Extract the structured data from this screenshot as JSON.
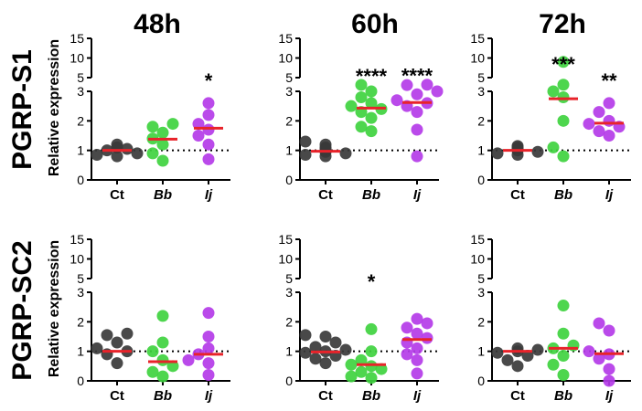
{
  "figure": {
    "time_points": [
      "48h",
      "60h",
      "72h"
    ],
    "genes": [
      "PGRP-S1",
      "PGRP-SC2"
    ],
    "ylabel": "Relative expression",
    "colors": {
      "Ct": "#3a3a3a",
      "Bb": "#3fd23f",
      "Ij": "#b43be8",
      "median": "#e8232a",
      "axis": "#000000"
    }
  },
  "chart_data": [
    {
      "type": "scatter",
      "panel": "PGRP-S1 48h",
      "gene": "PGRP-S1",
      "time": "48h",
      "categories": [
        "Ct",
        "Bb",
        "Ij"
      ],
      "ylabel": "Relative expression",
      "ylim_lower": [
        0,
        3
      ],
      "ylim_upper": [
        5,
        15
      ],
      "yticks_lower": [
        "0",
        "1",
        "2",
        "3"
      ],
      "yticks_upper": [
        "5",
        "10",
        "15"
      ],
      "reference_line": 1,
      "series": [
        {
          "name": "Ct",
          "values": [
            0.8,
            0.85,
            0.9,
            1.0,
            1.05,
            1.1,
            1.2
          ],
          "median": 1.0,
          "significance": ""
        },
        {
          "name": "Bb",
          "values": [
            0.65,
            0.9,
            1.2,
            1.4,
            1.6,
            1.8,
            1.9
          ],
          "median": 1.38,
          "significance": ""
        },
        {
          "name": "Ij",
          "values": [
            0.7,
            1.2,
            1.5,
            1.7,
            1.9,
            2.2,
            2.6
          ],
          "median": 1.75,
          "significance": "*"
        }
      ]
    },
    {
      "type": "scatter",
      "panel": "PGRP-S1 60h",
      "gene": "PGRP-S1",
      "time": "60h",
      "categories": [
        "Ct",
        "Bb",
        "Ij"
      ],
      "ylabel": "Relative expression",
      "ylim_lower": [
        0,
        3
      ],
      "ylim_upper": [
        5,
        15
      ],
      "yticks_lower": [
        "0",
        "1",
        "2",
        "3"
      ],
      "yticks_upper": [
        "5",
        "10",
        "15"
      ],
      "reference_line": 1,
      "series": [
        {
          "name": "Ct",
          "values": [
            0.8,
            0.85,
            0.9,
            0.95,
            1.0,
            1.05,
            1.1,
            1.2,
            1.3
          ],
          "median": 0.97,
          "significance": ""
        },
        {
          "name": "Bb",
          "values": [
            1.65,
            1.8,
            2.1,
            2.3,
            2.4,
            2.5,
            2.6,
            2.8,
            3.0,
            3.15
          ],
          "median": 2.43,
          "significance": "****"
        },
        {
          "name": "Ij",
          "values": [
            0.8,
            1.7,
            2.3,
            2.5,
            2.6,
            2.7,
            2.9,
            3.0,
            3.1,
            3.2
          ],
          "median": 2.62,
          "significance": "****"
        }
      ]
    },
    {
      "type": "scatter",
      "panel": "PGRP-S1 72h",
      "gene": "PGRP-S1",
      "time": "72h",
      "categories": [
        "Ct",
        "Bb",
        "Ij"
      ],
      "ylabel": "Relative expression",
      "ylim_lower": [
        0,
        3
      ],
      "ylim_upper": [
        5,
        15
      ],
      "yticks_lower": [
        "0",
        "1",
        "2",
        "3"
      ],
      "yticks_upper": [
        "5",
        "10",
        "15"
      ],
      "reference_line": 1,
      "series": [
        {
          "name": "Ct",
          "values": [
            0.85,
            0.9,
            0.95,
            1.0,
            1.05,
            1.1,
            1.15
          ],
          "median": 1.0,
          "significance": ""
        },
        {
          "name": "Bb",
          "values": [
            0.8,
            1.1,
            2.0,
            2.8,
            3.0,
            3.2,
            9.0
          ],
          "median": 2.75,
          "significance": "***"
        },
        {
          "name": "Ij",
          "values": [
            1.5,
            1.65,
            1.8,
            1.9,
            2.0,
            2.3,
            2.6
          ],
          "median": 1.92,
          "significance": "**"
        }
      ]
    },
    {
      "type": "scatter",
      "panel": "PGRP-SC2 48h",
      "gene": "PGRP-SC2",
      "time": "48h",
      "categories": [
        "Ct",
        "Bb",
        "Ij"
      ],
      "ylabel": "Relative expression",
      "ylim_lower": [
        0,
        3
      ],
      "ylim_upper": [
        5,
        15
      ],
      "yticks_lower": [
        "0",
        "1",
        "2",
        "3"
      ],
      "yticks_upper": [
        "5",
        "10",
        "15"
      ],
      "reference_line": 1,
      "series": [
        {
          "name": "Ct",
          "values": [
            0.6,
            0.9,
            1.0,
            1.1,
            1.3,
            1.55,
            1.6
          ],
          "median": 1.0,
          "significance": ""
        },
        {
          "name": "Bb",
          "values": [
            0.15,
            0.3,
            0.5,
            0.7,
            1.0,
            1.3,
            2.2
          ],
          "median": 0.65,
          "significance": ""
        },
        {
          "name": "Ij",
          "values": [
            0.2,
            0.6,
            0.7,
            0.9,
            1.1,
            1.5,
            2.3
          ],
          "median": 0.9,
          "significance": ""
        }
      ]
    },
    {
      "type": "scatter",
      "panel": "PGRP-SC2 60h",
      "gene": "PGRP-SC2",
      "time": "60h",
      "categories": [
        "Ct",
        "Bb",
        "Ij"
      ],
      "ylabel": "Relative expression",
      "ylim_lower": [
        0,
        3
      ],
      "ylim_upper": [
        5,
        15
      ],
      "yticks_lower": [
        "0",
        "1",
        "2",
        "3"
      ],
      "yticks_upper": [
        "5",
        "10",
        "15"
      ],
      "reference_line": 1,
      "series": [
        {
          "name": "Ct",
          "values": [
            0.6,
            0.75,
            0.85,
            0.95,
            1.0,
            1.05,
            1.15,
            1.3,
            1.5,
            1.55
          ],
          "median": 0.98,
          "significance": ""
        },
        {
          "name": "Bb",
          "values": [
            0.1,
            0.15,
            0.3,
            0.4,
            0.5,
            0.55,
            0.7,
            1.0,
            1.75
          ],
          "median": 0.55,
          "significance": "*"
        },
        {
          "name": "Ij",
          "values": [
            0.25,
            0.7,
            0.9,
            1.1,
            1.3,
            1.45,
            1.6,
            1.8,
            1.95,
            2.1
          ],
          "median": 1.4,
          "significance": ""
        }
      ]
    },
    {
      "type": "scatter",
      "panel": "PGRP-SC2 72h",
      "gene": "PGRP-SC2",
      "time": "72h",
      "categories": [
        "Ct",
        "Bb",
        "Ij"
      ],
      "ylabel": "Relative expression",
      "ylim_lower": [
        0,
        3
      ],
      "ylim_upper": [
        5,
        15
      ],
      "yticks_lower": [
        "0",
        "1",
        "2",
        "3"
      ],
      "yticks_upper": [
        "5",
        "10",
        "15"
      ],
      "reference_line": 1,
      "series": [
        {
          "name": "Ct",
          "values": [
            0.5,
            0.7,
            0.85,
            0.95,
            1.0,
            1.05,
            1.1
          ],
          "median": 1.0,
          "significance": ""
        },
        {
          "name": "Bb",
          "values": [
            0.2,
            0.55,
            0.85,
            1.1,
            1.2,
            1.6,
            2.55
          ],
          "median": 1.1,
          "significance": ""
        },
        {
          "name": "Ij",
          "values": [
            0.0,
            0.4,
            0.75,
            0.9,
            1.0,
            1.7,
            1.95
          ],
          "median": 0.92,
          "significance": ""
        }
      ]
    }
  ]
}
